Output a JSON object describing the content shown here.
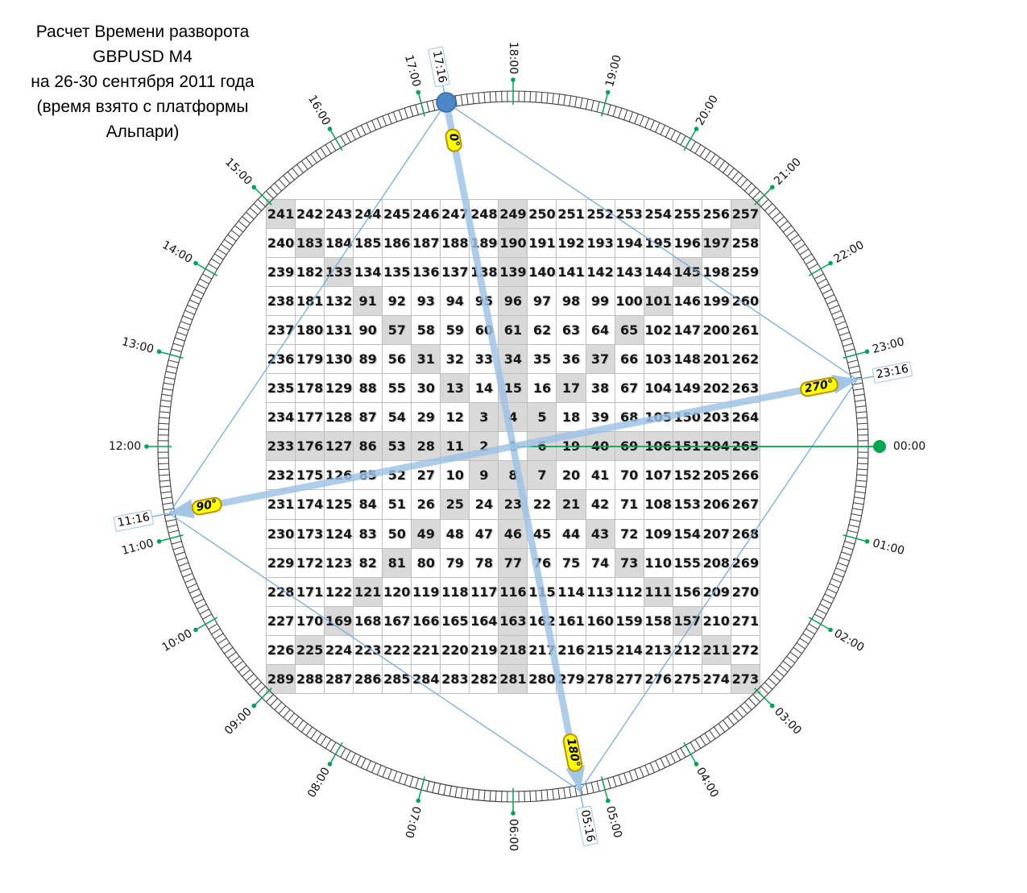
{
  "title": {
    "lines": [
      "Расчет Времени разворота",
      "GBPUSD M4",
      "на 26-30 сентября 2011 года",
      "(время взято с платформы",
      "Альпари)"
    ]
  },
  "clock": {
    "hour_labels": [
      "00:00",
      "01:00",
      "02:00",
      "03:00",
      "04:00",
      "05:00",
      "06:00",
      "07:00",
      "08:00",
      "09:00",
      "10:00",
      "11:00",
      "12:00",
      "13:00",
      "14:00",
      "15:00",
      "16:00",
      "17:00",
      "18:00",
      "19:00",
      "20:00",
      "21:00",
      "22:00",
      "23:00"
    ]
  },
  "markers": [
    {
      "time": "17:16",
      "degree": "0°",
      "marker": "start-point"
    },
    {
      "time": "23:16",
      "degree": "270°",
      "marker": "arrow-end"
    },
    {
      "time": "05:16",
      "degree": "180°",
      "marker": "arrow-end"
    },
    {
      "time": "11:16",
      "degree": "90°",
      "marker": "arrow-end"
    }
  ],
  "grid": {
    "rows": [
      [
        241,
        242,
        243,
        244,
        245,
        246,
        247,
        248,
        249,
        250,
        251,
        252,
        253,
        254,
        255,
        256,
        257
      ],
      [
        240,
        183,
        184,
        185,
        186,
        187,
        188,
        189,
        190,
        191,
        192,
        193,
        194,
        195,
        196,
        197,
        258
      ],
      [
        239,
        182,
        133,
        134,
        135,
        136,
        137,
        138,
        139,
        140,
        141,
        142,
        143,
        144,
        145,
        198,
        259
      ],
      [
        238,
        181,
        132,
        91,
        92,
        93,
        94,
        95,
        96,
        97,
        98,
        99,
        100,
        101,
        146,
        199,
        260
      ],
      [
        237,
        180,
        131,
        90,
        57,
        58,
        59,
        60,
        61,
        62,
        63,
        64,
        65,
        102,
        147,
        200,
        261
      ],
      [
        236,
        179,
        130,
        89,
        56,
        31,
        32,
        33,
        34,
        35,
        36,
        37,
        66,
        103,
        148,
        201,
        262
      ],
      [
        235,
        178,
        129,
        88,
        55,
        30,
        13,
        14,
        15,
        16,
        17,
        38,
        67,
        104,
        149,
        202,
        263
      ],
      [
        234,
        177,
        128,
        87,
        54,
        29,
        12,
        3,
        4,
        5,
        18,
        39,
        68,
        105,
        150,
        203,
        264
      ],
      [
        233,
        176,
        127,
        86,
        53,
        28,
        11,
        2,
        1,
        6,
        19,
        40,
        69,
        106,
        151,
        204,
        265
      ],
      [
        232,
        175,
        126,
        85,
        52,
        27,
        10,
        9,
        8,
        7,
        20,
        41,
        70,
        107,
        152,
        205,
        266
      ],
      [
        231,
        174,
        125,
        84,
        51,
        26,
        25,
        24,
        23,
        22,
        21,
        42,
        71,
        108,
        153,
        206,
        267
      ],
      [
        230,
        173,
        124,
        83,
        50,
        49,
        48,
        47,
        46,
        45,
        44,
        43,
        72,
        109,
        154,
        207,
        268
      ],
      [
        229,
        172,
        123,
        82,
        81,
        80,
        79,
        78,
        77,
        76,
        75,
        74,
        73,
        110,
        155,
        208,
        269
      ],
      [
        228,
        171,
        122,
        121,
        120,
        119,
        118,
        117,
        116,
        115,
        114,
        113,
        112,
        111,
        156,
        209,
        270
      ],
      [
        227,
        170,
        169,
        168,
        167,
        166,
        165,
        164,
        163,
        162,
        161,
        160,
        159,
        158,
        157,
        210,
        271
      ],
      [
        226,
        225,
        224,
        223,
        222,
        221,
        220,
        219,
        218,
        217,
        216,
        215,
        214,
        213,
        212,
        211,
        272
      ],
      [
        289,
        288,
        287,
        286,
        285,
        284,
        283,
        282,
        281,
        280,
        279,
        278,
        277,
        276,
        275,
        274,
        273
      ]
    ]
  },
  "colors": {
    "arrow": "#9dc3e6",
    "thin_line": "#6fa8dc",
    "green": "#00a651",
    "ring": "#3d3d3d",
    "badge_bg": "#ffff00",
    "badge_border": "#bf9000",
    "box_border": "#9dc3e6",
    "shaded_cell": "#d9d9d9",
    "start_dot_fill": "#4d87c7",
    "start_dot_stroke": "#2e6da8"
  }
}
